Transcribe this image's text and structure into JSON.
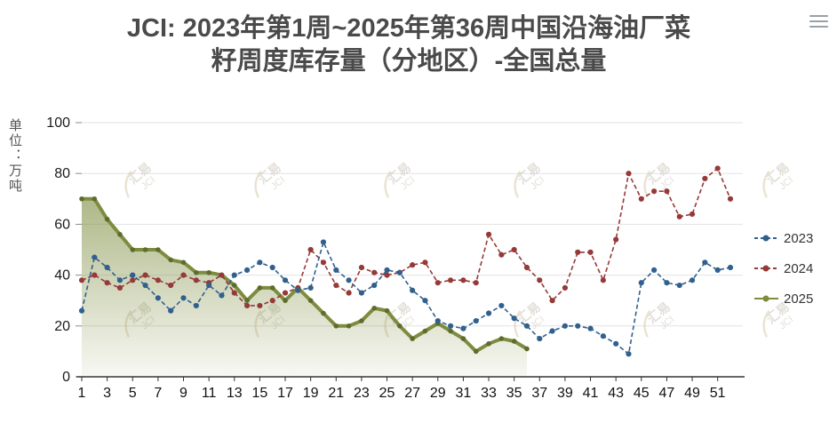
{
  "header": {
    "title_line1": "JCI: 2023年第1周~2025年第36周中国沿海油厂菜",
    "title_line2": "籽周度库存量（分地区）-全国总量"
  },
  "watermark": {
    "text_cn": "汇易",
    "text_en": "JCI"
  },
  "chart_data": {
    "type": "line",
    "title": "JCI: 2023年第1周~2025年第36周中国沿海油厂菜籽周度库存量（分地区）-全国总量",
    "ylabel": "单位：万吨",
    "xlabel": "",
    "ylim": [
      0,
      100
    ],
    "yticks": [
      0,
      20,
      40,
      60,
      80,
      100
    ],
    "xtick_labels": [
      1,
      3,
      5,
      7,
      9,
      11,
      13,
      15,
      17,
      19,
      21,
      23,
      25,
      27,
      29,
      31,
      33,
      35,
      37,
      39,
      41,
      43,
      45,
      47,
      49,
      51
    ],
    "x_range": [
      1,
      52
    ],
    "grid": true,
    "legend_position": "right",
    "series": [
      {
        "name": "2023",
        "color": "#31608e",
        "style": "dashed",
        "values": [
          26,
          47,
          43,
          38,
          40,
          36,
          31,
          26,
          31,
          28,
          36,
          32,
          40,
          42,
          45,
          43,
          38,
          34,
          35,
          53,
          42,
          38,
          33,
          36,
          42,
          41,
          34,
          30,
          22,
          20,
          19,
          22,
          25,
          28,
          23,
          20,
          15,
          18,
          20,
          20,
          19,
          16,
          13,
          9,
          37,
          42,
          37,
          36,
          38,
          45,
          42,
          43
        ]
      },
      {
        "name": "2024",
        "color": "#953a39",
        "style": "dashed",
        "values": [
          38,
          40,
          37,
          35,
          38,
          40,
          38,
          36,
          40,
          38,
          37,
          40,
          33,
          28,
          28,
          30,
          33,
          35,
          50,
          45,
          36,
          33,
          43,
          41,
          40,
          41,
          44,
          45,
          37,
          38,
          38,
          37,
          56,
          48,
          50,
          43,
          38,
          30,
          35,
          49,
          49,
          38,
          54,
          80,
          70,
          73,
          73,
          63,
          64,
          78,
          82,
          70
        ]
      },
      {
        "name": "2025",
        "color": "#7d8c3e",
        "style": "solid-area",
        "values": [
          70,
          70,
          62,
          56,
          50,
          50,
          50,
          46,
          45,
          41,
          41,
          40,
          36,
          30,
          35,
          35,
          30,
          35,
          30,
          25,
          20,
          20,
          22,
          27,
          26,
          20,
          15,
          18,
          21,
          18,
          15,
          10,
          13,
          15,
          14,
          11
        ]
      }
    ]
  }
}
